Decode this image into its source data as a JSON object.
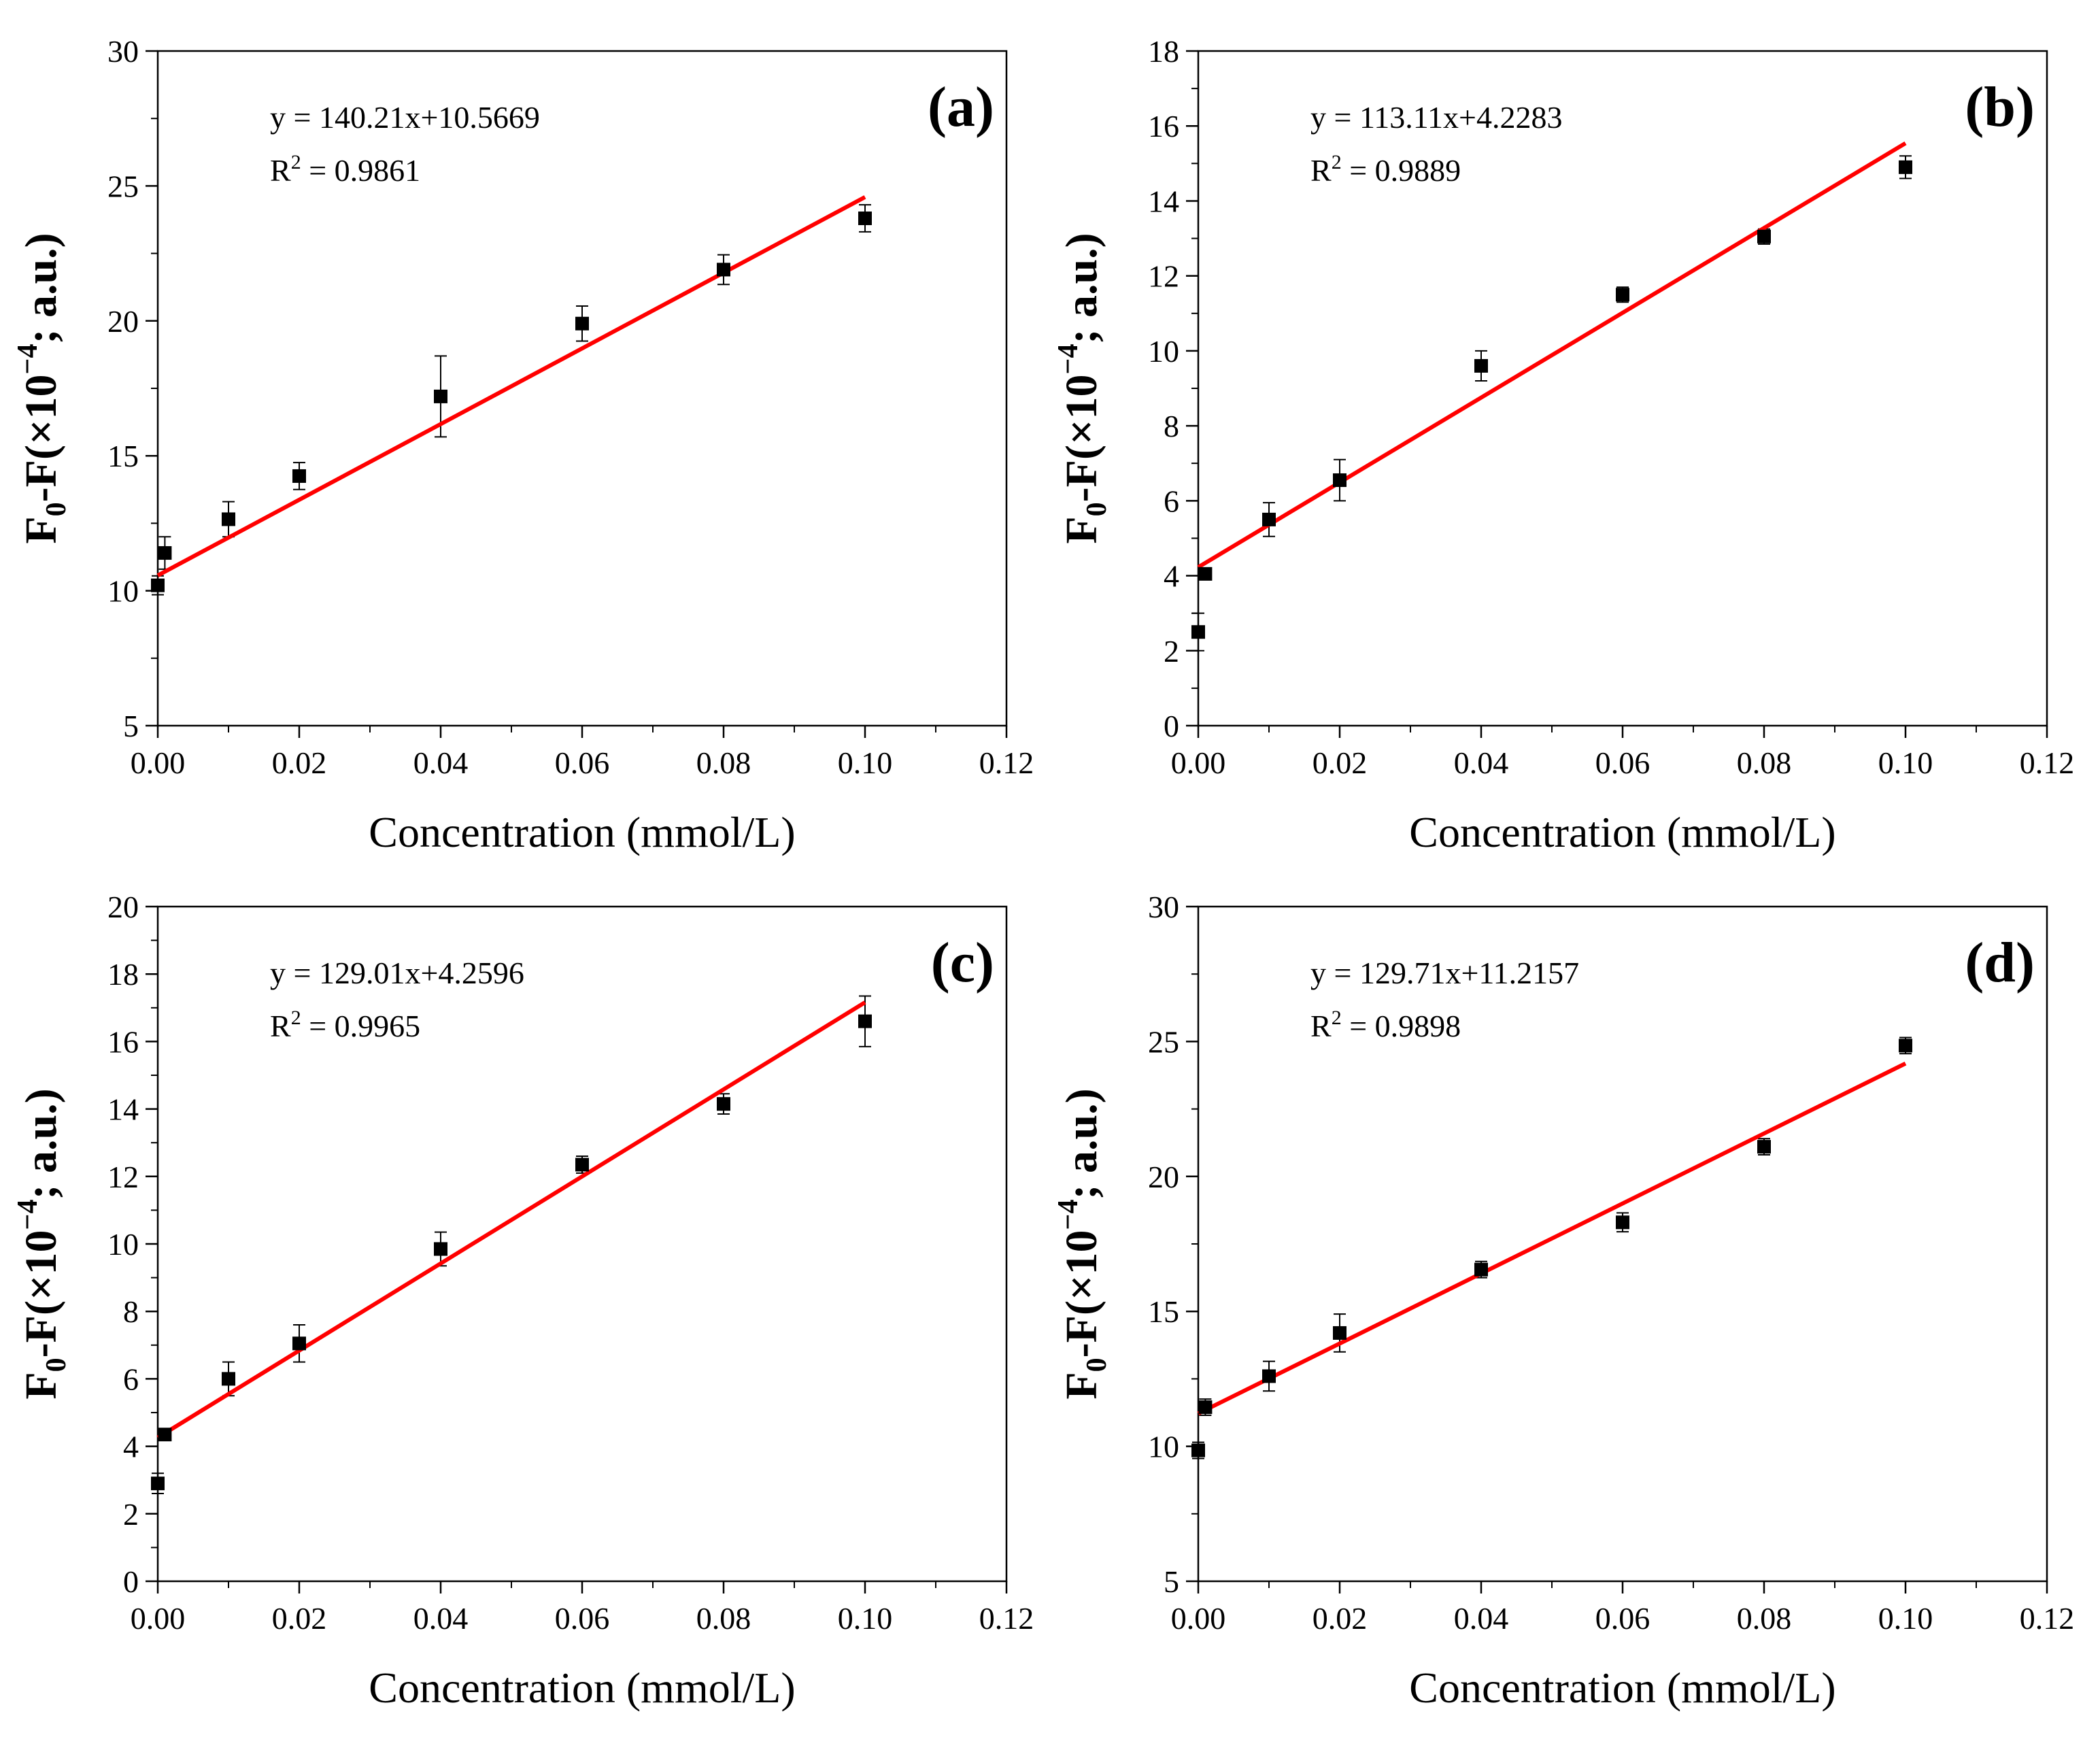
{
  "chart_data": [
    {
      "type": "scatter",
      "panel_label": "(a)",
      "xlabel": "Concentration (mmol/L)",
      "ylabel": {
        "base": "F",
        "sub": "0",
        "text": "-F(×10",
        "sup": "−4",
        "unit": ";  a.u.)"
      },
      "xlim": [
        0,
        0.12
      ],
      "ylim": [
        5,
        30
      ],
      "xticks": [
        0,
        0.02,
        0.04,
        0.06,
        0.08,
        0.1,
        0.12
      ],
      "xtick_labels": [
        "0.00",
        "0.02",
        "0.04",
        "0.06",
        "0.08",
        "0.10",
        "0.12"
      ],
      "yticks": [
        5,
        10,
        15,
        20,
        25,
        30
      ],
      "ytick_labels": [
        "5",
        "10",
        "15",
        "20",
        "25",
        "30"
      ],
      "equation": "y = 140.21x+10.5669",
      "r2": {
        "prefix": "R",
        "sup": "2",
        "value": " = 0.9861"
      },
      "fit": {
        "slope": 140.21,
        "intercept": 10.5669,
        "x_range": [
          0,
          0.1
        ],
        "color": "#ff0000"
      },
      "points": [
        {
          "x": 0.0,
          "y": 10.2,
          "err": 0.35
        },
        {
          "x": 0.001,
          "y": 11.4,
          "err": 0.6
        },
        {
          "x": 0.01,
          "y": 12.65,
          "err": 0.65
        },
        {
          "x": 0.02,
          "y": 14.25,
          "err": 0.5
        },
        {
          "x": 0.04,
          "y": 17.2,
          "err": 1.5
        },
        {
          "x": 0.06,
          "y": 19.9,
          "err": 0.65
        },
        {
          "x": 0.08,
          "y": 21.9,
          "err": 0.55
        },
        {
          "x": 0.1,
          "y": 23.8,
          "err": 0.5
        }
      ]
    },
    {
      "type": "scatter",
      "panel_label": "(b)",
      "xlabel": "Concentration (mmol/L)",
      "ylabel": {
        "base": "F",
        "sub": "0",
        "text": "-F(×10",
        "sup": "−4",
        "unit": ";  a.u.)"
      },
      "xlim": [
        0,
        0.12
      ],
      "ylim": [
        0,
        18
      ],
      "xticks": [
        0,
        0.02,
        0.04,
        0.06,
        0.08,
        0.1,
        0.12
      ],
      "xtick_labels": [
        "0.00",
        "0.02",
        "0.04",
        "0.06",
        "0.08",
        "0.10",
        "0.12"
      ],
      "yticks": [
        0,
        2,
        4,
        6,
        8,
        10,
        12,
        14,
        16,
        18
      ],
      "ytick_labels": [
        "0",
        "2",
        "4",
        "6",
        "8",
        "10",
        "12",
        "14",
        "16",
        "18"
      ],
      "equation": "y = 113.11x+4.2283",
      "r2": {
        "prefix": "R",
        "sup": "2",
        "value": " = 0.9889"
      },
      "fit": {
        "slope": 113.11,
        "intercept": 4.2283,
        "x_range": [
          0,
          0.1
        ],
        "color": "#ff0000"
      },
      "points": [
        {
          "x": 0.0,
          "y": 2.5,
          "err": 0.5
        },
        {
          "x": 0.001,
          "y": 4.05,
          "err": 0.15
        },
        {
          "x": 0.01,
          "y": 5.5,
          "err": 0.45
        },
        {
          "x": 0.02,
          "y": 6.55,
          "err": 0.55
        },
        {
          "x": 0.04,
          "y": 9.6,
          "err": 0.4
        },
        {
          "x": 0.06,
          "y": 11.5,
          "err": 0.2
        },
        {
          "x": 0.08,
          "y": 13.05,
          "err": 0.2
        },
        {
          "x": 0.1,
          "y": 14.9,
          "err": 0.3
        }
      ]
    },
    {
      "type": "scatter",
      "panel_label": "(c)",
      "xlabel": "Concentration (mmol/L)",
      "ylabel": {
        "base": "F",
        "sub": "0",
        "text": "-F(×10",
        "sup": "−4",
        "unit": ";  a.u.)"
      },
      "xlim": [
        0,
        0.12
      ],
      "ylim": [
        0,
        20
      ],
      "xticks": [
        0,
        0.02,
        0.04,
        0.06,
        0.08,
        0.1,
        0.12
      ],
      "xtick_labels": [
        "0.00",
        "0.02",
        "0.04",
        "0.06",
        "0.08",
        "0.10",
        "0.12"
      ],
      "yticks": [
        0,
        2,
        4,
        6,
        8,
        10,
        12,
        14,
        16,
        18,
        20
      ],
      "ytick_labels": [
        "0",
        "2",
        "4",
        "6",
        "8",
        "10",
        "12",
        "14",
        "16",
        "18",
        "20"
      ],
      "equation": "y = 129.01x+4.2596",
      "r2": {
        "prefix": "R",
        "sup": "2",
        "value": " = 0.9965"
      },
      "fit": {
        "slope": 129.01,
        "intercept": 4.2596,
        "x_range": [
          0,
          0.1
        ],
        "color": "#ff0000"
      },
      "points": [
        {
          "x": 0.0,
          "y": 2.9,
          "err": 0.3
        },
        {
          "x": 0.001,
          "y": 4.35,
          "err": 0.15
        },
        {
          "x": 0.01,
          "y": 6.0,
          "err": 0.5
        },
        {
          "x": 0.02,
          "y": 7.05,
          "err": 0.55
        },
        {
          "x": 0.04,
          "y": 9.85,
          "err": 0.5
        },
        {
          "x": 0.06,
          "y": 12.35,
          "err": 0.25
        },
        {
          "x": 0.08,
          "y": 14.15,
          "err": 0.3
        },
        {
          "x": 0.1,
          "y": 16.6,
          "err": 0.75
        }
      ]
    },
    {
      "type": "scatter",
      "panel_label": "(d)",
      "xlabel": "Concentration (mmol/L)",
      "ylabel": {
        "base": "F",
        "sub": "0",
        "text": "-F(×10",
        "sup": "−4",
        "unit": ";  a.u.)"
      },
      "xlim": [
        0,
        0.12
      ],
      "ylim": [
        5,
        30
      ],
      "xticks": [
        0,
        0.02,
        0.04,
        0.06,
        0.08,
        0.1,
        0.12
      ],
      "xtick_labels": [
        "0.00",
        "0.02",
        "0.04",
        "0.06",
        "0.08",
        "0.10",
        "0.12"
      ],
      "yticks": [
        5,
        10,
        15,
        20,
        25,
        30
      ],
      "ytick_labels": [
        "5",
        "10",
        "15",
        "20",
        "25",
        "30"
      ],
      "equation": "y = 129.71x+11.2157",
      "r2": {
        "prefix": "R",
        "sup": "2",
        "value": " = 0.9898"
      },
      "fit": {
        "slope": 129.71,
        "intercept": 11.2157,
        "x_range": [
          0,
          0.1
        ],
        "color": "#ff0000"
      },
      "points": [
        {
          "x": 0.0,
          "y": 9.85,
          "err": 0.3
        },
        {
          "x": 0.001,
          "y": 11.45,
          "err": 0.3
        },
        {
          "x": 0.01,
          "y": 12.6,
          "err": 0.55
        },
        {
          "x": 0.02,
          "y": 14.2,
          "err": 0.7
        },
        {
          "x": 0.04,
          "y": 16.55,
          "err": 0.3
        },
        {
          "x": 0.06,
          "y": 18.3,
          "err": 0.35
        },
        {
          "x": 0.08,
          "y": 21.1,
          "err": 0.3
        },
        {
          "x": 0.1,
          "y": 24.85,
          "err": 0.3
        }
      ]
    }
  ]
}
